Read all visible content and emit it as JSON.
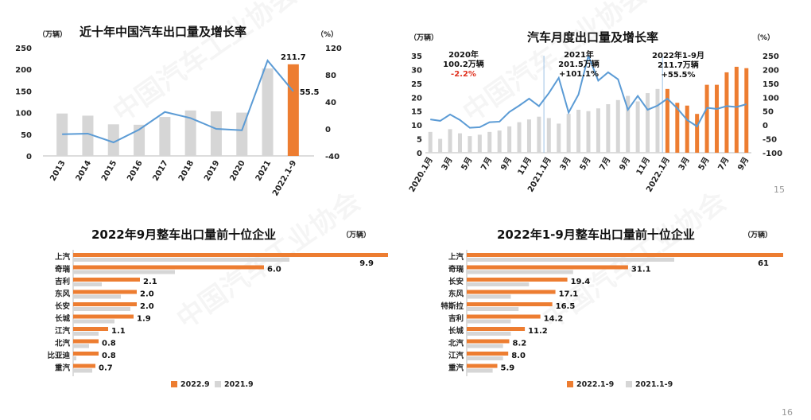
{
  "page_numbers": {
    "top": "15",
    "bottom": "16"
  },
  "watermark": "中国汽车工业协会",
  "colors": {
    "orange": "#ed7d31",
    "gray": "#d6d6d6",
    "line": "#5b9bd5"
  },
  "chart_data": [
    {
      "type": "bar",
      "title": "近十年中国汽车出口量及增长率",
      "unit_left": "（万辆）",
      "unit_right": "（%）",
      "categories": [
        "2013",
        "2014",
        "2015",
        "2016",
        "2017",
        "2018",
        "2019",
        "2020",
        "2021",
        "2022.1-9"
      ],
      "series": [
        {
          "values": [
            98,
            93,
            73,
            72,
            90,
            105,
            103,
            100,
            202,
            211.7
          ],
          "highlight_last": true
        },
        {
          "values": [
            -8,
            -7,
            -20,
            -1,
            25,
            16,
            0,
            -2,
            101,
            55.5
          ],
          "axis": "right"
        }
      ],
      "data_labels": [
        "211.7",
        "55.5"
      ],
      "ylim": [
        0,
        250
      ],
      "y_ticks": [
        "0",
        "50",
        "100",
        "150",
        "200",
        "250"
      ],
      "y2lim": [
        -40,
        120
      ],
      "y2_ticks": [
        "-40",
        "0",
        "40",
        "80",
        "120"
      ]
    },
    {
      "type": "bar",
      "title": "汽车月度出口量及增长率",
      "unit_left": "（万辆）",
      "unit_right": "（%）",
      "x_tick_labels": [
        "2020.1月",
        "3月",
        "5月",
        "7月",
        "9月",
        "11月",
        "2021.1月",
        "3月",
        "5月",
        "7月",
        "9月",
        "11月",
        "2022.1月",
        "3月",
        "5月",
        "7月",
        "9月"
      ],
      "bar_values": [
        7.5,
        5,
        8.5,
        7,
        6,
        6.5,
        7.5,
        8,
        9.5,
        11,
        12,
        13,
        12.5,
        10.5,
        14,
        15.5,
        15,
        16,
        17.5,
        19,
        20.5,
        18.5,
        21.5,
        23,
        23,
        18,
        17,
        14,
        24.5,
        24.5,
        29,
        31,
        30.5
      ],
      "line_values": [
        20,
        15,
        38,
        18,
        -10,
        -8,
        10,
        12,
        47,
        70,
        95,
        68,
        115,
        170,
        45,
        110,
        250,
        160,
        190,
        165,
        55,
        105,
        55,
        70,
        95,
        60,
        18,
        -5,
        62,
        58,
        68,
        65,
        75
      ],
      "ylim": [
        0,
        35
      ],
      "y_ticks": [
        "0",
        "5",
        "10",
        "15",
        "20",
        "25",
        "30",
        "35"
      ],
      "y2lim": [
        -100,
        250
      ],
      "y2_ticks": [
        "-100",
        "-50",
        "0",
        "50",
        "100",
        "150",
        "200",
        "250"
      ],
      "annotations": [
        {
          "line1": "2020年",
          "line2": "100.2万辆",
          "line3": "-2.2%"
        },
        {
          "line1": "2021年",
          "line2": "201.5万辆",
          "line3": "+101.1%"
        },
        {
          "line1": "2022年1-9月",
          "line2": "211.7万辆",
          "line3": "+55.5%"
        }
      ]
    },
    {
      "type": "bar",
      "title": "2022年9月整车出口量前十位企业",
      "unit": "（万辆）",
      "categories": [
        "上汽",
        "奇瑞",
        "吉利",
        "东风",
        "长安",
        "长城",
        "江汽",
        "北汽",
        "比亚迪",
        "重汽"
      ],
      "series": [
        {
          "name": "2022.9",
          "values": [
            9.9,
            6.0,
            2.1,
            2.0,
            2.0,
            1.9,
            1.1,
            0.8,
            0.8,
            0.7
          ]
        },
        {
          "name": "2021.9",
          "values": [
            6.8,
            3.2,
            0.9,
            1.5,
            1.8,
            1.3,
            0.8,
            0.5,
            0.1,
            0.6
          ]
        }
      ],
      "data_labels": [
        "9.9",
        "6.0",
        "2.1",
        "2.0",
        "2.0",
        "1.9",
        "1.1",
        "0.8",
        "0.8",
        "0.7"
      ],
      "xlim": [
        0,
        10
      ]
    },
    {
      "type": "bar",
      "title": "2022年1-9月整车出口量前十位企业",
      "unit": "（万辆）",
      "categories": [
        "上汽",
        "奇瑞",
        "长安",
        "东风",
        "特斯拉",
        "吉利",
        "长城",
        "北汽",
        "江汽",
        "重汽"
      ],
      "series": [
        {
          "name": "2022.1-9",
          "values": [
            61,
            31.1,
            19.4,
            17.1,
            16.5,
            14.2,
            11.2,
            8.2,
            8.0,
            5.9
          ]
        },
        {
          "name": "2021.1-9",
          "values": [
            40,
            20.5,
            12,
            8.5,
            10,
            8.5,
            8.5,
            7,
            7,
            5
          ]
        }
      ],
      "data_labels": [
        "61",
        "31.1",
        "19.4",
        "17.1",
        "16.5",
        "14.2",
        "11.2",
        "8.2",
        "8.0",
        "5.9"
      ],
      "xlim": [
        0,
        61
      ]
    }
  ]
}
